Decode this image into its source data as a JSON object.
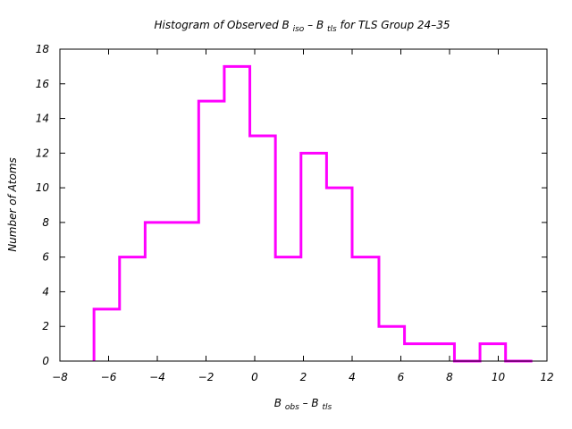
{
  "chart_data": {
    "type": "histogram",
    "title": {
      "prefix": "Histogram of Observed B",
      "sub1": "iso",
      "middle": " – B",
      "sub2": "tls",
      "suffix": " for TLS Group 24–35"
    },
    "xlabel": {
      "main1": "B",
      "sub1": "obs",
      "middle": " – B",
      "sub2": "tls"
    },
    "ylabel": "Number of Atoms",
    "xlim": [
      -8,
      12
    ],
    "ylim": [
      0,
      18
    ],
    "xticks": [
      -8,
      -6,
      -4,
      -2,
      0,
      2,
      4,
      6,
      8,
      10,
      12
    ],
    "xtick_labels": [
      "−8",
      "−6",
      "−4",
      "−2",
      "0",
      "2",
      "4",
      "6",
      "8",
      "10",
      "12"
    ],
    "yticks": [
      0,
      2,
      4,
      6,
      8,
      10,
      12,
      14,
      16,
      18
    ],
    "ytick_labels": [
      "0",
      "2",
      "4",
      "6",
      "8",
      "10",
      "12",
      "14",
      "16",
      "18"
    ],
    "bin_edges": [
      -6.6,
      -5.55,
      -4.5,
      -3.4,
      -2.3,
      -1.25,
      -0.2,
      0.85,
      1.9,
      2.95,
      4.0,
      5.1,
      6.15,
      7.2,
      8.2,
      9.25,
      10.3,
      11.4
    ],
    "counts": [
      3,
      6,
      8,
      8,
      15,
      17,
      13,
      6,
      12,
      10,
      6,
      2,
      1,
      1,
      0,
      1,
      0
    ],
    "color": "#ff00ff",
    "grid": false,
    "legend": "none"
  }
}
